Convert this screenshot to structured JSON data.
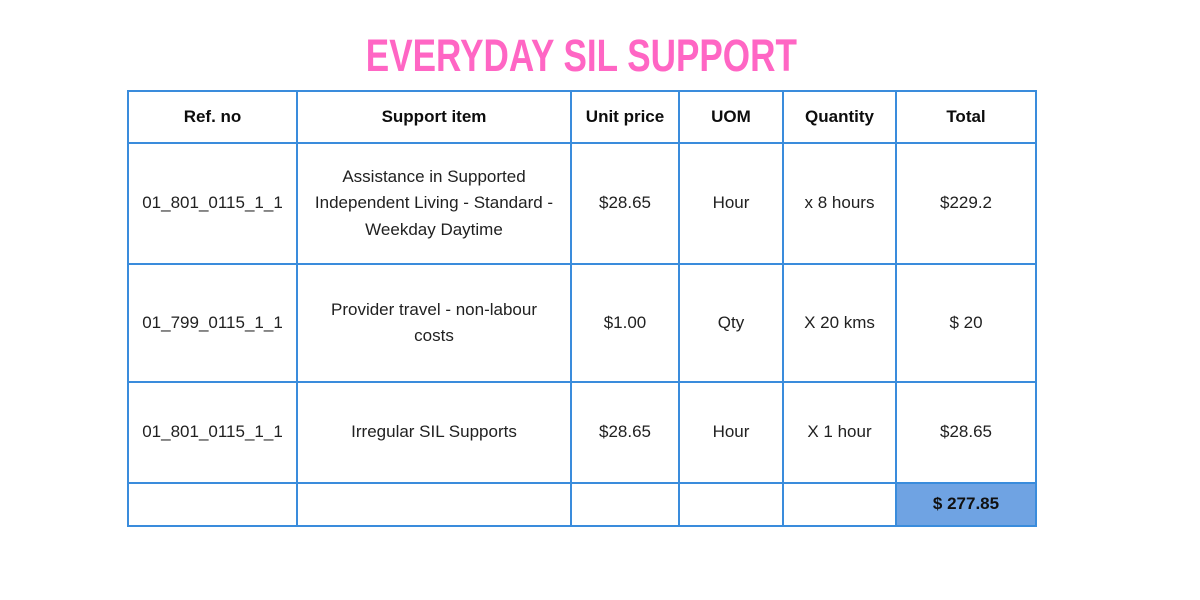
{
  "title": "EVERYDAY SIL SUPPORT",
  "colors": {
    "title_pink": "#FF66C4",
    "border_blue": "#3A8CDC",
    "grand_total_highlight": "#6FA3E3",
    "text": "#212121"
  },
  "table": {
    "columns": [
      "Ref. no",
      "Support item",
      "Unit price",
      "UOM",
      "Quantity",
      "Total"
    ],
    "rows": [
      {
        "ref_no": "01_801_0115_1_1",
        "support_item": "Assistance in Supported Independent Living - Standard - Weekday Daytime",
        "unit_price": "$28.65",
        "uom": "Hour",
        "quantity": "x 8 hours",
        "total": "$229.2"
      },
      {
        "ref_no": "01_799_0115_1_1",
        "support_item": "Provider travel - non-labour costs",
        "unit_price": "$1.00",
        "uom": "Qty",
        "quantity": "X 20 kms",
        "total": "$ 20"
      },
      {
        "ref_no": "01_801_0115_1_1",
        "support_item": "Irregular SIL Supports",
        "unit_price": "$28.65",
        "uom": "Hour",
        "quantity": "X 1 hour",
        "total": "$28.65"
      }
    ],
    "grand_total": "$ 277.85"
  }
}
